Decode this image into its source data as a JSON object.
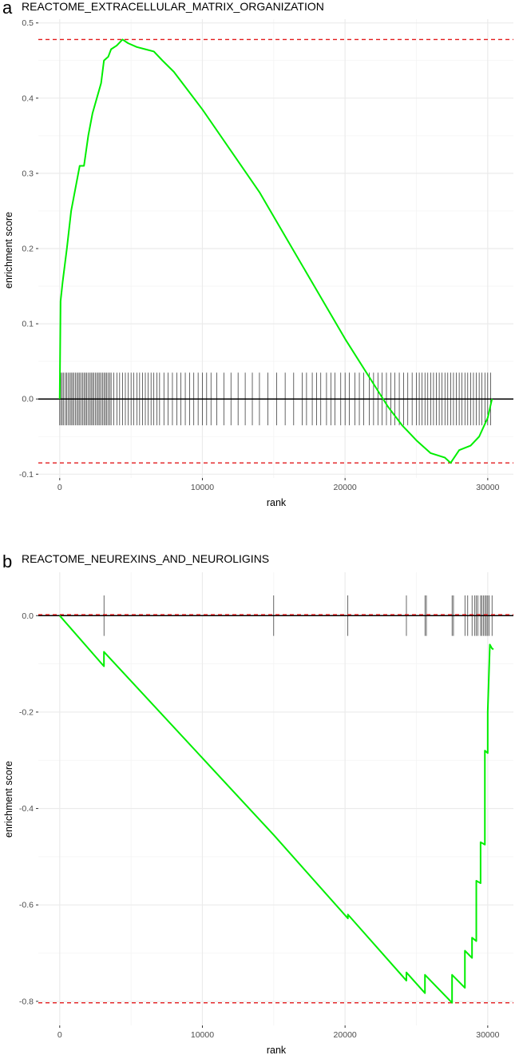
{
  "chart_data": [
    {
      "type": "line",
      "panel_label": "a",
      "title": "REACTOME_EXTRACELLULAR_MATRIX_ORGANIZATION",
      "xlabel": "rank",
      "ylabel": "enrichment score",
      "xlim": [
        -1500,
        31800
      ],
      "ylim": [
        -0.105,
        0.505
      ],
      "x_ticks": [
        0,
        10000,
        20000,
        30000
      ],
      "y_ticks": [
        -0.1,
        0.0,
        0.1,
        0.2,
        0.3,
        0.4,
        0.5
      ],
      "y_tick_labels": [
        "-0.1",
        "0.0",
        "0.1",
        "0.2",
        "0.3",
        "0.4",
        "0.5"
      ],
      "max_es": 0.478,
      "min_es": -0.085,
      "hit_bar_range": [
        -0.035,
        0.035
      ],
      "colors": {
        "curve": "#00ee00",
        "extremes": "#e31a1c",
        "hits": "#000000"
      },
      "series": [
        {
          "points": [
            [
              0,
              0
            ],
            [
              60,
              0.13
            ],
            [
              200,
              0.155
            ],
            [
              500,
              0.2
            ],
            [
              800,
              0.25
            ],
            [
              1100,
              0.28
            ],
            [
              1400,
              0.31
            ],
            [
              1700,
              0.31
            ],
            [
              2000,
              0.35
            ],
            [
              2300,
              0.38
            ],
            [
              2600,
              0.4
            ],
            [
              2900,
              0.42
            ],
            [
              3100,
              0.45
            ],
            [
              3400,
              0.455
            ],
            [
              3600,
              0.465
            ],
            [
              4000,
              0.47
            ],
            [
              4400,
              0.478
            ],
            [
              4800,
              0.473
            ],
            [
              5400,
              0.468
            ],
            [
              6000,
              0.465
            ],
            [
              6600,
              0.462
            ],
            [
              7200,
              0.45
            ],
            [
              8000,
              0.435
            ],
            [
              9000,
              0.41
            ],
            [
              10000,
              0.385
            ],
            [
              12000,
              0.33
            ],
            [
              14000,
              0.275
            ],
            [
              16000,
              0.21
            ],
            [
              18000,
              0.145
            ],
            [
              20000,
              0.08
            ],
            [
              22000,
              0.02
            ],
            [
              23000,
              -0.01
            ],
            [
              24000,
              -0.035
            ],
            [
              25000,
              -0.055
            ],
            [
              26000,
              -0.072
            ],
            [
              27000,
              -0.078
            ],
            [
              27400,
              -0.085
            ],
            [
              28000,
              -0.068
            ],
            [
              28800,
              -0.062
            ],
            [
              29400,
              -0.05
            ],
            [
              30000,
              -0.025
            ],
            [
              30300,
              0.0
            ]
          ]
        }
      ],
      "hits": [
        0,
        80,
        180,
        280,
        400,
        500,
        600,
        700,
        800,
        900,
        1000,
        1100,
        1200,
        1300,
        1400,
        1500,
        1600,
        1700,
        1800,
        1900,
        2000,
        2100,
        2200,
        2300,
        2400,
        2500,
        2600,
        2700,
        2800,
        2900,
        3000,
        3100,
        3200,
        3300,
        3400,
        3500,
        3600,
        3800,
        4000,
        4200,
        4400,
        4600,
        4800,
        5000,
        5200,
        5400,
        5600,
        5800,
        6000,
        6200,
        6400,
        6600,
        6800,
        7000,
        7300,
        7600,
        7900,
        8200,
        8500,
        8800,
        9100,
        9400,
        9700,
        10000,
        10300,
        10600,
        11000,
        11500,
        12000,
        12500,
        13000,
        13500,
        14000,
        14600,
        15200,
        15800,
        16400,
        17000,
        17300,
        17700,
        18000,
        18300,
        18700,
        19000,
        19300,
        19700,
        20000,
        20300,
        20700,
        21000,
        21300,
        21700,
        22000,
        22300,
        22600,
        22900,
        23200,
        23500,
        23800,
        24100,
        24400,
        24700,
        25000,
        25200,
        25400,
        25600,
        25800,
        26000,
        26200,
        26400,
        26600,
        26800,
        27000,
        27200,
        27400,
        27600,
        27800,
        28000,
        28200,
        28400,
        28600,
        28800,
        29000,
        29200,
        29400,
        29600,
        29800,
        30000,
        30200
      ]
    },
    {
      "type": "line",
      "panel_label": "b",
      "title": "REACTOME_NEUREXINS_AND_NEUROLIGINS",
      "xlabel": "rank",
      "ylabel": "enrichment score",
      "xlim": [
        -1500,
        31800
      ],
      "ylim": [
        -0.85,
        0.09
      ],
      "x_ticks": [
        0,
        10000,
        20000,
        30000
      ],
      "y_ticks": [
        -0.8,
        -0.6,
        -0.4,
        -0.2,
        0.0
      ],
      "y_tick_labels": [
        "-0.8",
        "-0.6",
        "-0.4",
        "-0.2",
        "0.0"
      ],
      "max_es": 0.002,
      "min_es": -0.803,
      "hit_bar_range": [
        -0.042,
        0.042
      ],
      "colors": {
        "curve": "#00ee00",
        "extremes": "#e31a1c",
        "hits": "#000000"
      },
      "series": [
        {
          "points": [
            [
              0,
              0
            ],
            [
              3100,
              -0.105
            ],
            [
              3100,
              -0.075
            ],
            [
              15000,
              -0.455
            ],
            [
              20200,
              -0.628
            ],
            [
              20200,
              -0.62
            ],
            [
              24300,
              -0.757
            ],
            [
              24300,
              -0.74
            ],
            [
              25600,
              -0.783
            ],
            [
              25600,
              -0.745
            ],
            [
              27500,
              -0.803
            ],
            [
              27500,
              -0.745
            ],
            [
              28400,
              -0.772
            ],
            [
              28400,
              -0.695
            ],
            [
              28900,
              -0.71
            ],
            [
              28900,
              -0.668
            ],
            [
              29200,
              -0.675
            ],
            [
              29200,
              -0.55
            ],
            [
              29500,
              -0.555
            ],
            [
              29500,
              -0.47
            ],
            [
              29800,
              -0.475
            ],
            [
              29800,
              -0.28
            ],
            [
              30000,
              -0.285
            ],
            [
              30000,
              -0.2
            ],
            [
              30150,
              -0.06
            ],
            [
              30300,
              -0.068
            ],
            [
              30400,
              -0.07
            ]
          ]
        }
      ],
      "hits": [
        3100,
        15000,
        20200,
        24300,
        25600,
        25700,
        27500,
        27600,
        28400,
        28600,
        28900,
        29100,
        29200,
        29300,
        29500,
        29600,
        29700,
        29800,
        29900,
        30000,
        30100,
        30300
      ]
    }
  ]
}
